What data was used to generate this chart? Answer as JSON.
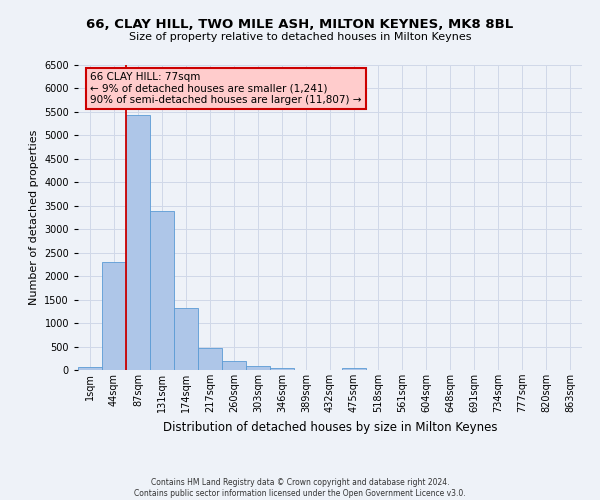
{
  "title": "66, CLAY HILL, TWO MILE ASH, MILTON KEYNES, MK8 8BL",
  "subtitle": "Size of property relative to detached houses in Milton Keynes",
  "xlabel": "Distribution of detached houses by size in Milton Keynes",
  "ylabel": "Number of detached properties",
  "footnote1": "Contains HM Land Registry data © Crown copyright and database right 2024.",
  "footnote2": "Contains public sector information licensed under the Open Government Licence v3.0.",
  "bar_labels": [
    "1sqm",
    "44sqm",
    "87sqm",
    "131sqm",
    "174sqm",
    "217sqm",
    "260sqm",
    "303sqm",
    "346sqm",
    "389sqm",
    "432sqm",
    "475sqm",
    "518sqm",
    "561sqm",
    "604sqm",
    "648sqm",
    "691sqm",
    "734sqm",
    "777sqm",
    "820sqm",
    "863sqm"
  ],
  "bar_values": [
    60,
    2300,
    5430,
    3390,
    1320,
    475,
    200,
    90,
    50,
    0,
    0,
    50,
    0,
    0,
    0,
    0,
    0,
    0,
    0,
    0,
    0
  ],
  "bar_color": "#aec6e8",
  "bar_edge_color": "#5b9bd5",
  "annotation_title": "66 CLAY HILL: 77sqm",
  "annotation_line1": "← 9% of detached houses are smaller (1,241)",
  "annotation_line2": "90% of semi-detached houses are larger (11,807) →",
  "ylim": [
    0,
    6500
  ],
  "yticks": [
    0,
    500,
    1000,
    1500,
    2000,
    2500,
    3000,
    3500,
    4000,
    4500,
    5000,
    5500,
    6000,
    6500
  ],
  "red_line_color": "#cc0000",
  "annotation_box_color": "#ffcccc",
  "annotation_border_color": "#cc0000",
  "grid_color": "#d0d8e8",
  "background_color": "#eef2f8",
  "title_fontsize": 9.5,
  "subtitle_fontsize": 8,
  "ylabel_fontsize": 8,
  "xlabel_fontsize": 8.5,
  "tick_fontsize": 7,
  "annotation_fontsize": 7.5,
  "footnote_fontsize": 5.5
}
